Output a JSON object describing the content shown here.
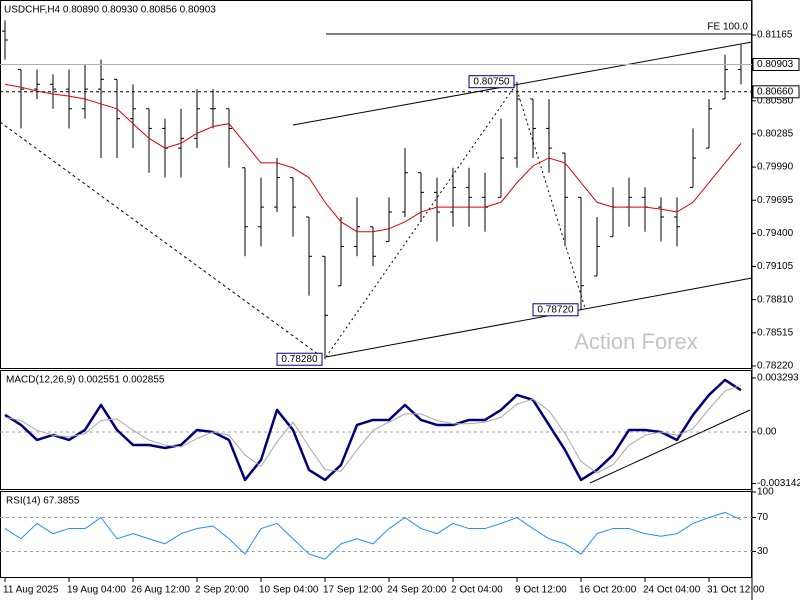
{
  "chart_data": [
    {
      "type": "ohlc",
      "title": "USDCHF,H4 0.80890 0.80930 0.80856 0.80903",
      "categories": [
        "11 Aug 2025",
        null,
        null,
        null,
        "19 Aug 04:00",
        null,
        null,
        null,
        "26 Aug 12:00",
        null,
        null,
        null,
        "2 Sep 20:00",
        null,
        null,
        null,
        "10 Sep 04:00",
        null,
        null,
        null,
        "17 Sep 12:00",
        null,
        null,
        null,
        "24 Sep 20:00",
        null,
        null,
        null,
        "2 Oct 04:00",
        null,
        null,
        null,
        "9 Oct 12:00",
        null,
        null,
        null,
        "16 Oct 20:00",
        null,
        null,
        null,
        "24 Oct 04:00",
        null,
        null,
        null,
        "31 Oct 12:00",
        null,
        null
      ],
      "open": [
        0.812,
        0.80859,
        0.80684,
        0.80727,
        0.80684,
        0.80509,
        0.80684,
        0.80771,
        0.80421,
        0.80509,
        0.80334,
        0.80159,
        0.80246,
        0.80509,
        0.80509,
        0.79984,
        0.79459,
        0.79634,
        0.79896,
        0.79546,
        0.79196,
        0.78934,
        0.79284,
        0.79459,
        0.79328,
        0.7959,
        0.7994,
        0.79765,
        0.7959,
        0.79809,
        0.79721,
        0.79721,
        0.80071,
        0.80596,
        0.80334,
        0.80115,
        0.79721,
        0.79021,
        0.79371,
        0.79634,
        0.79721,
        0.79634,
        0.79546,
        0.79809,
        0.80159,
        0.80596,
        0.80859
      ],
      "high": [
        0.81296,
        0.80859,
        0.80859,
        0.80815,
        0.80859,
        0.80903,
        0.80946,
        0.80771,
        0.80727,
        0.80509,
        0.80421,
        0.80509,
        0.80684,
        0.80684,
        0.80509,
        0.79984,
        0.79896,
        0.80071,
        0.79896,
        0.79546,
        0.79196,
        0.79546,
        0.79721,
        0.79459,
        0.79721,
        0.80159,
        0.7994,
        0.79896,
        0.79984,
        0.79984,
        0.7994,
        0.80421,
        0.8075,
        0.80596,
        0.80596,
        0.80115,
        0.79721,
        0.79546,
        0.79809,
        0.79896,
        0.79809,
        0.79721,
        0.79721,
        0.80334,
        0.80596,
        0.8099,
        0.81078
      ],
      "low": [
        0.80946,
        0.80334,
        0.80596,
        0.80509,
        0.80334,
        0.80421,
        0.80071,
        0.80071,
        0.80159,
        0.7994,
        0.79896,
        0.79896,
        0.80159,
        0.80334,
        0.79984,
        0.79196,
        0.79284,
        0.7959,
        0.79371,
        0.78846,
        0.7828,
        0.78934,
        0.79196,
        0.79109,
        0.79328,
        0.79546,
        0.79503,
        0.79328,
        0.79459,
        0.79459,
        0.79415,
        0.79721,
        0.79984,
        0.80071,
        0.7994,
        0.79284,
        0.7872,
        0.79021,
        0.79371,
        0.79459,
        0.79415,
        0.79328,
        0.79284,
        0.79809,
        0.80159,
        0.80596,
        0.80727
      ],
      "close": [
        0.81121,
        0.80684,
        0.80727,
        0.80684,
        0.80509,
        0.80684,
        0.80771,
        0.80421,
        0.80509,
        0.80334,
        0.80159,
        0.80246,
        0.80509,
        0.80509,
        0.80334,
        0.79459,
        0.79634,
        0.79896,
        0.79634,
        0.79196,
        0.78671,
        0.79284,
        0.79459,
        0.79196,
        0.7959,
        0.7994,
        0.79765,
        0.7959,
        0.79809,
        0.79721,
        0.79634,
        0.80071,
        0.80596,
        0.80334,
        0.80159,
        0.79721,
        0.78934,
        0.79284,
        0.79634,
        0.79721,
        0.79634,
        0.79546,
        0.79459,
        0.80071,
        0.80509,
        0.80859,
        0.80903
      ],
      "color": "#000000",
      "ma_color": "#e00000",
      "ma_values": [
        0.80727,
        0.80701,
        0.80666,
        0.8064,
        0.80622,
        0.80596,
        0.80552,
        0.80509,
        0.80377,
        0.80246,
        0.80159,
        0.80202,
        0.8029,
        0.80351,
        0.80377,
        0.80202,
        0.80027,
        0.80027,
        0.79984,
        0.79896,
        0.79677,
        0.79503,
        0.79415,
        0.79415,
        0.79441,
        0.79503,
        0.7959,
        0.79634,
        0.79634,
        0.79634,
        0.79634,
        0.79677,
        0.79852,
        0.80001,
        0.80071,
        0.80027,
        0.79852,
        0.79677,
        0.79634,
        0.79634,
        0.79634,
        0.79616,
        0.7959,
        0.79677,
        0.79852,
        0.80027,
        0.80202
      ],
      "ylim": [
        0.78202,
        0.81477
      ],
      "yticks": [
        0.81165,
        {
          "value": 0.8058,
          "label": "0.80580"
        },
        0.80285,
        {
          "value": 0.7999,
          "label": "0.79990"
        },
        0.79695,
        {
          "value": 0.794,
          "label": "0.79400"
        },
        0.79105,
        {
          "value": 0.7881,
          "label": "0.78810"
        },
        0.78515,
        {
          "value": 0.7822,
          "label": "0.78220"
        }
      ],
      "grid": false,
      "hlines": [
        {
          "value": 0.80903,
          "label": "0.80903",
          "color": "#b0b0b0",
          "dashed": false
        },
        {
          "value": 0.8066,
          "label": "0.80660",
          "color": "#000000",
          "dashed": true
        }
      ],
      "price_labels": [
        {
          "value": 0.8075,
          "label": "0.80750"
        },
        {
          "value": 0.7872,
          "label": "0.78720"
        },
        {
          "value": 0.7828,
          "label": "0.78280"
        }
      ],
      "fe_label": "FE 100.0",
      "watermark": "Action Forex"
    },
    {
      "type": "line",
      "title": "MACD(12,26,9) 0.002551 0.002855",
      "series": [
        {
          "color": "#00007a",
          "values": [
            0.001037,
            0.000427,
            -0.000488,
            -0.000183,
            -0.000488,
            0.000122,
            0.001647,
            0.000122,
            -0.000793,
            -0.000793,
            -0.000976,
            -0.000793,
            0.000122,
            0,
            -0.000488,
            -0.002928,
            -0.001708,
            0.001342,
            0.000122,
            -0.002318,
            -0.002928,
            -0.002013,
            0.000427,
            0.000732,
            0.000732,
            0.001647,
            0.000732,
            0.000427,
            0.000427,
            0.000732,
            0.000732,
            0.001342,
            0.002257,
            0.001952,
            0.000427,
            -0.001098,
            -0.002928,
            -0.002318,
            -0.001403,
            0.000122,
            0.000122,
            0,
            -0.000488,
            0.001037,
            0.002257,
            0.003172,
            0.002551
          ]
        },
        {
          "color": "#a8a8a8",
          "values": [
            0.0009,
            0.0007,
            0.0001,
            -0.0002,
            -0.0003,
            -0.0001,
            0.0007,
            0.0008,
            0.0001,
            -0.0005,
            -0.0008,
            -0.0009,
            -0.0004,
            0,
            -0.0002,
            -0.0014,
            -0.0021,
            -0.0006,
            0.0006,
            -0.0009,
            -0.0023,
            -0.0024,
            -0.0011,
            0.0001,
            0.0006,
            0.0011,
            0.0011,
            0.0007,
            0.0005,
            0.0005,
            0.0006,
            0.0009,
            0.0017,
            0.002,
            0.0013,
            -0.0001,
            -0.0018,
            -0.0025,
            -0.002,
            -0.0008,
            -0.0002,
            0,
            -0.0002,
            0.0002,
            0.0014,
            0.0025,
            0.002855
          ]
        }
      ],
      "ylim": [
        -0.00354,
        0.00378
      ],
      "yticks": [
        0.003293,
        {
          "value": 0,
          "label": "0.00"
        },
        -0.003142
      ],
      "grid": "zero"
    },
    {
      "type": "line",
      "title": "RSI(14) 67.3855",
      "series": [
        {
          "color": "#1e90ff",
          "values": [
            57,
            45,
            63,
            51,
            57,
            57,
            70,
            45,
            51,
            45,
            39,
            51,
            57,
            60,
            45,
            27,
            57,
            63,
            45,
            27,
            21,
            39,
            45,
            39,
            57,
            70,
            57,
            51,
            63,
            57,
            57,
            63,
            70,
            57,
            45,
            39,
            27,
            51,
            57,
            57,
            51,
            48,
            51,
            63,
            70,
            76,
            67.3855
          ]
        }
      ],
      "ylim": [
        0,
        100
      ],
      "yticks": [
        100,
        70,
        30
      ],
      "grid": "inner"
    }
  ]
}
